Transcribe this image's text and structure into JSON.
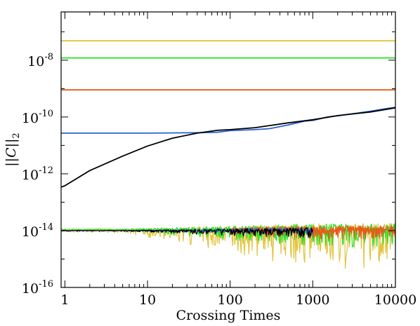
{
  "chart_data": {
    "type": "line",
    "xlabel": "Crossing Times",
    "ylabel": "||C||",
    "ylabel_subscript": "2",
    "xscale": "log",
    "yscale": "log",
    "xlim": [
      0.9,
      10000
    ],
    "ylim": [
      1e-16,
      5e-07
    ],
    "grid": false,
    "legend": "none",
    "x_ticks": [
      {
        "value": 1,
        "label": "1"
      },
      {
        "value": 10,
        "label": "10"
      },
      {
        "value": 100,
        "label": "100"
      },
      {
        "value": 1000,
        "label": "1000"
      },
      {
        "value": 10000,
        "label": "10000"
      }
    ],
    "y_ticks": [
      {
        "value": 1e-16,
        "base": "10",
        "exp": "-16"
      },
      {
        "value": 1e-14,
        "base": "10",
        "exp": "-14"
      },
      {
        "value": 1e-12,
        "base": "10",
        "exp": "-12"
      },
      {
        "value": 1e-10,
        "base": "10",
        "exp": "-10"
      },
      {
        "value": 1e-08,
        "base": "10",
        "exp": "-8"
      }
    ],
    "series": [
      {
        "color": "#e2c33a",
        "style": "constant",
        "x": [
          0.9,
          10000
        ],
        "y": [
          4.8e-08,
          4.8e-08
        ]
      },
      {
        "color": "#22e022",
        "style": "constant",
        "x": [
          0.9,
          10000
        ],
        "y": [
          1.2e-08,
          1.2e-08
        ]
      },
      {
        "color": "#e85a1a",
        "style": "constant",
        "x": [
          0.9,
          10000
        ],
        "y": [
          9e-10,
          9e-10
        ]
      },
      {
        "color": "#2a62d0",
        "style": "line",
        "x": [
          0.9,
          1,
          2,
          5,
          10,
          20,
          40,
          70,
          100,
          200,
          300,
          500,
          800,
          1000,
          1500,
          2000,
          3000,
          5000,
          8000,
          10000
        ],
        "y": [
          2.7e-11,
          2.7e-11,
          2.7e-11,
          2.7e-11,
          2.7e-11,
          2.75e-11,
          2.8e-11,
          2.9e-11,
          3.3e-11,
          3.6e-11,
          3.9e-11,
          5.2e-11,
          7.2e-11,
          7.5e-11,
          1e-10,
          1.1e-10,
          1.3e-10,
          1.6e-10,
          2e-10,
          2.2e-10
        ]
      },
      {
        "color": "#000000",
        "style": "line",
        "x": [
          0.9,
          1,
          2,
          5,
          10,
          20,
          40,
          70,
          100,
          200,
          300,
          500,
          1000,
          2000,
          5000,
          10000
        ],
        "y": [
          3.4e-13,
          3.8e-13,
          1.3e-12,
          4.2e-12,
          9.5e-12,
          1.8e-11,
          2.7e-11,
          3.4e-11,
          3.6e-11,
          4.2e-11,
          5e-11,
          6.2e-11,
          8e-11,
          1.12e-10,
          1.5e-10,
          2.1e-10
        ]
      },
      {
        "color": "#e2c33a",
        "style": "noise",
        "x": [
          0.9,
          10000
        ],
        "y_level": 1.1e-14,
        "y_min": 4e-16,
        "y_max": 1.8e-14
      },
      {
        "color": "#22e022",
        "style": "noise",
        "x": [
          0.9,
          10000
        ],
        "y_level": 1.1e-14,
        "y_min": 2.5e-15,
        "y_max": 1.8e-14
      },
      {
        "color": "#e85a1a",
        "style": "noise",
        "x": [
          100,
          10000
        ],
        "y_level": 1.05e-14,
        "y_min": 5e-15,
        "y_max": 1.5e-14
      },
      {
        "color": "#2a62d0",
        "style": "noise",
        "x": [
          0.9,
          1000
        ],
        "y_level": 1e-14,
        "y_min": 7e-15,
        "y_max": 1.3e-14
      },
      {
        "color": "#000000",
        "style": "noise",
        "x": [
          0.9,
          1000
        ],
        "y_level": 1e-14,
        "y_min": 5e-15,
        "y_max": 1.3e-14
      }
    ]
  }
}
